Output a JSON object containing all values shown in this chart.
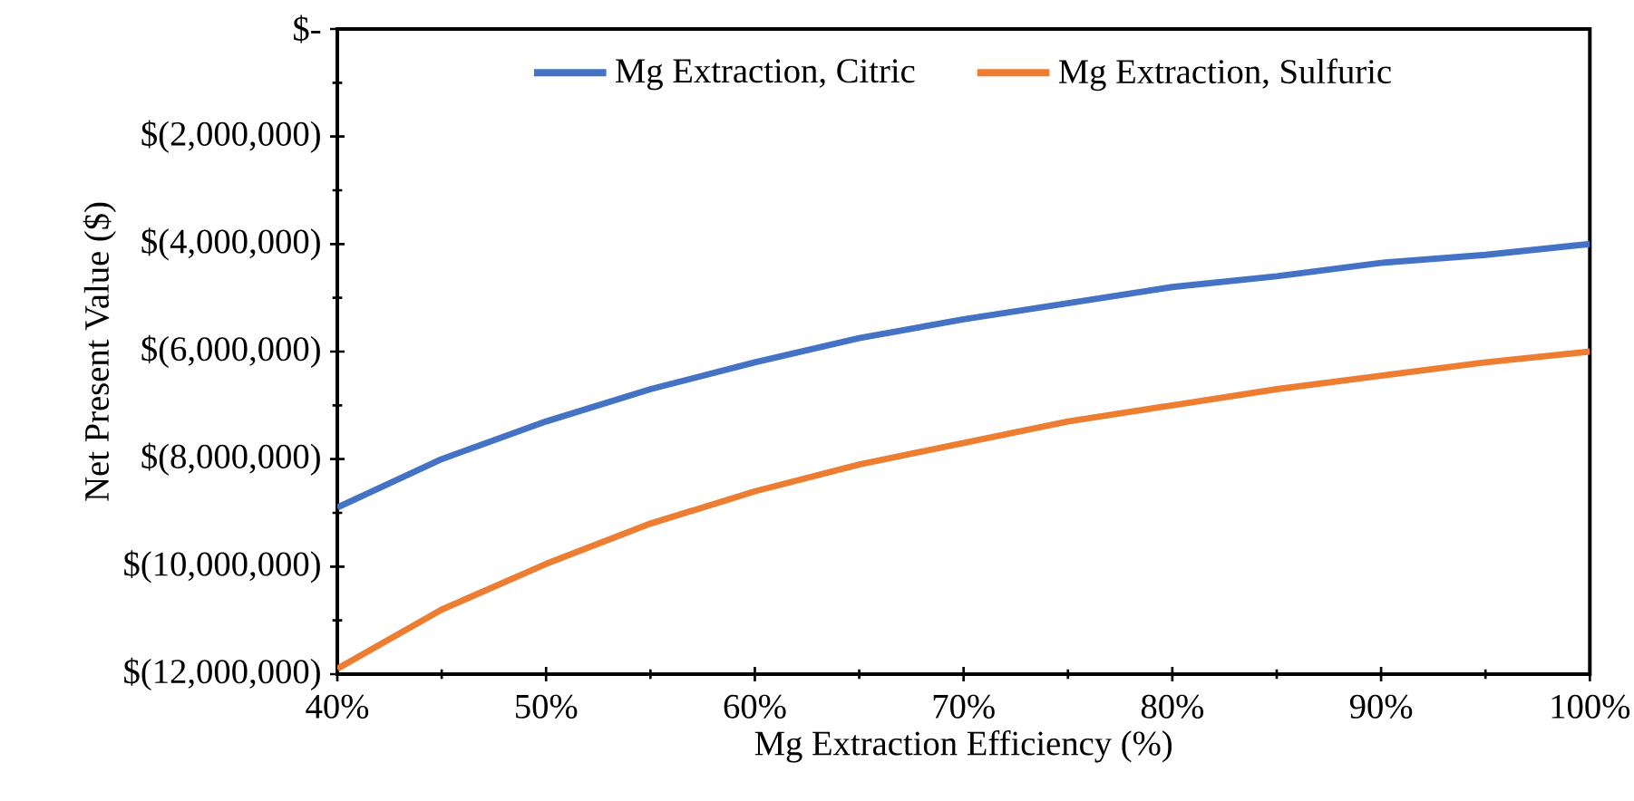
{
  "chart_data": {
    "type": "line",
    "xlabel": "Mg Extraction Efficiency (%)",
    "ylabel": "Net Present Value ($)",
    "x": [
      40,
      45,
      50,
      55,
      60,
      65,
      70,
      75,
      80,
      85,
      90,
      95,
      100
    ],
    "series": [
      {
        "name": "Mg Extraction, Citric",
        "color": "#4472c4",
        "values": [
          -8900000,
          -8000000,
          -7300000,
          -6700000,
          -6200000,
          -5750000,
          -5400000,
          -5100000,
          -4800000,
          -4600000,
          -4350000,
          -4200000,
          -4000000
        ]
      },
      {
        "name": "Mg Extraction, Sulfuric",
        "color": "#ed7d31",
        "values": [
          -11900000,
          -10800000,
          -9950000,
          -9200000,
          -8600000,
          -8100000,
          -7700000,
          -7300000,
          -7000000,
          -6700000,
          -6450000,
          -6200000,
          -6000000
        ]
      }
    ],
    "xlim": [
      40,
      100
    ],
    "ylim": [
      -12000000,
      0
    ],
    "xticks": [
      {
        "value": 40,
        "label": "40%"
      },
      {
        "value": 50,
        "label": "50%"
      },
      {
        "value": 60,
        "label": "60%"
      },
      {
        "value": 70,
        "label": "70%"
      },
      {
        "value": 80,
        "label": "80%"
      },
      {
        "value": 90,
        "label": "90%"
      },
      {
        "value": 100,
        "label": "100%"
      }
    ],
    "yticks": [
      {
        "value": -12000000,
        "label": "$(12,000,000)"
      },
      {
        "value": -10000000,
        "label": "$(10,000,000)"
      },
      {
        "value": -8000000,
        "label": "$(8,000,000)"
      },
      {
        "value": -6000000,
        "label": "$(6,000,000)"
      },
      {
        "value": -4000000,
        "label": "$(4,000,000)"
      },
      {
        "value": -2000000,
        "label": "$(2,000,000)"
      },
      {
        "value": 0,
        "label": "$-"
      }
    ],
    "grid": false,
    "legend": "top",
    "marker": "none",
    "line_style": "solid"
  }
}
